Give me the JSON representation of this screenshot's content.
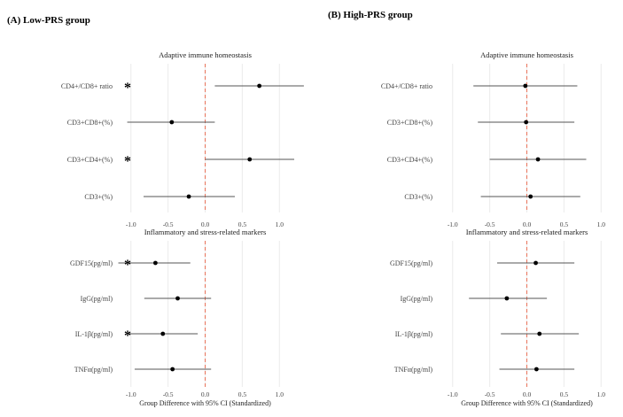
{
  "chart_data": [
    {
      "panel_title": "(A)   Low-PRS group",
      "type": "forest",
      "xlim": [
        -1.2,
        1.2
      ],
      "ticks": [
        -1.0,
        -0.5,
        0.0,
        0.5,
        1.0
      ],
      "tick_labels": [
        "-1.0",
        "-0.5",
        "0.0",
        "0.5",
        "1.0"
      ],
      "xlabel": "Group Difference with 95% CI (Standardized)",
      "reference_line": 0,
      "subpanels": [
        {
          "title": "Adaptive immune homeostasis",
          "rows": [
            {
              "label": "CD4+/CD8+ ratio",
              "estimate": 0.73,
              "lower": 0.13,
              "upper": 1.33,
              "significant": true
            },
            {
              "label": "CD3+CD8+(%)",
              "estimate": -0.45,
              "lower": -1.05,
              "upper": 0.13,
              "significant": false
            },
            {
              "label": "CD3+CD4+(%)",
              "estimate": 0.6,
              "lower": 0.0,
              "upper": 1.2,
              "significant": true
            },
            {
              "label": "CD3+(%)",
              "estimate": -0.22,
              "lower": -0.83,
              "upper": 0.4,
              "significant": false
            }
          ]
        },
        {
          "title": "Inflammatory and stress-related markers",
          "rows": [
            {
              "label": "GDF15(pg/ml)",
              "estimate": -0.67,
              "lower": -1.17,
              "upper": -0.2,
              "significant": true
            },
            {
              "label": "IgG(pg/ml)",
              "estimate": -0.37,
              "lower": -0.82,
              "upper": 0.08,
              "significant": false
            },
            {
              "label": "IL-1β(pg/ml)",
              "estimate": -0.57,
              "lower": -1.05,
              "upper": -0.1,
              "significant": true
            },
            {
              "label": "TNFα(pg/ml)",
              "estimate": -0.44,
              "lower": -0.95,
              "upper": 0.08,
              "significant": false
            }
          ]
        }
      ]
    },
    {
      "panel_title": "(B)   High-PRS group",
      "type": "forest",
      "xlim": [
        -1.2,
        1.2
      ],
      "ticks": [
        -1.0,
        -0.5,
        0.0,
        0.5,
        1.0
      ],
      "tick_labels": [
        "-1.0",
        "-0.5",
        "0.0",
        "0.5",
        "1.0"
      ],
      "xlabel": "Group Difference with 95% CI (Standardized)",
      "reference_line": 0,
      "subpanels": [
        {
          "title": "Adaptive immune homeostasis",
          "rows": [
            {
              "label": "CD4+/CD8+ ratio",
              "estimate": -0.02,
              "lower": -0.72,
              "upper": 0.68,
              "significant": false
            },
            {
              "label": "CD3+CD8+(%)",
              "estimate": -0.01,
              "lower": -0.66,
              "upper": 0.64,
              "significant": false
            },
            {
              "label": "CD3+CD4+(%)",
              "estimate": 0.15,
              "lower": -0.5,
              "upper": 0.8,
              "significant": false
            },
            {
              "label": "CD3+(%)",
              "estimate": 0.05,
              "lower": -0.62,
              "upper": 0.72,
              "significant": false
            }
          ]
        },
        {
          "title": "Inflammatory and stress-related markers",
          "rows": [
            {
              "label": "GDF15(pg/ml)",
              "estimate": 0.12,
              "lower": -0.4,
              "upper": 0.64,
              "significant": false
            },
            {
              "label": "IgG(pg/ml)",
              "estimate": -0.27,
              "lower": -0.78,
              "upper": 0.27,
              "significant": false
            },
            {
              "label": "IL-1β(pg/ml)",
              "estimate": 0.17,
              "lower": -0.35,
              "upper": 0.7,
              "significant": false
            },
            {
              "label": "TNFα(pg/ml)",
              "estimate": 0.13,
              "lower": -0.37,
              "upper": 0.64,
              "significant": false
            }
          ]
        }
      ]
    }
  ],
  "significance_marker": "*",
  "colors": {
    "reference_line": "#e8735a",
    "ci_line": "#555555",
    "point": "#000000",
    "grid": "#ebebeb"
  }
}
